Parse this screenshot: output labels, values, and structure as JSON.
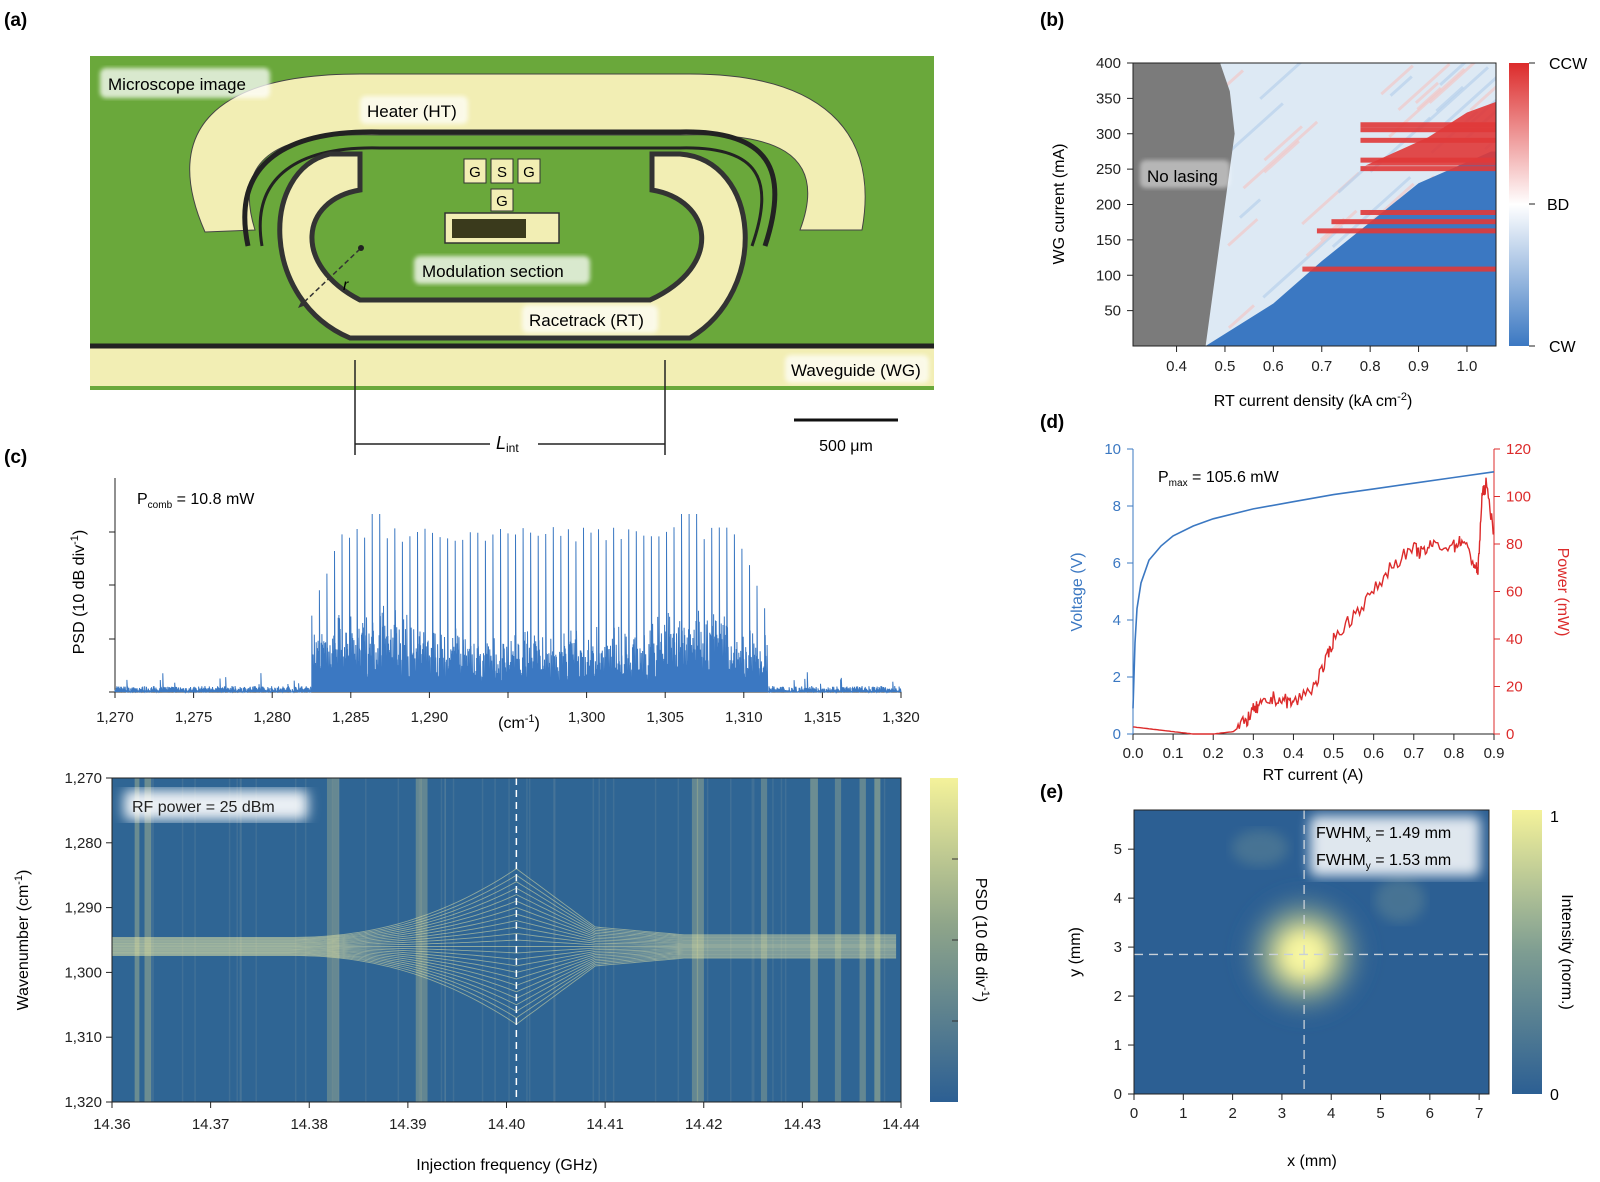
{
  "colors": {
    "green": "#6aa83b",
    "gold": "#f2eeb4",
    "blue": "#3b78c2",
    "red": "#dc2b2b",
    "map_low": "#2c5f93",
    "map_high": "#f4f29a",
    "grey": "#7b7b7b"
  },
  "panel_a": {
    "label": "(a)",
    "tags": [
      "Microscope image",
      "Heater (HT)",
      "Modulation section",
      "Racetrack (RT)",
      "Waveguide (WG)"
    ],
    "pads": [
      "G",
      "S",
      "G",
      "G"
    ],
    "radius_symbol": "r",
    "lint": "L",
    "lint_sub": "int",
    "scale_bar": "500 μm"
  },
  "chart_data": [
    {
      "id": "b",
      "type": "heatmap",
      "panel_label": "(b)",
      "xlabel": "RT current density (kA cm",
      "xlabel_sup": "-2",
      "xlabel_end": ")",
      "ylabel": "WG current (mA)",
      "xlim": [
        0.31,
        1.06
      ],
      "ylim": [
        0,
        400
      ],
      "xticks": [
        "0.4",
        "0.5",
        "0.6",
        "0.7",
        "0.8",
        "0.9",
        "1.0"
      ],
      "yticks": [
        "50",
        "100",
        "150",
        "200",
        "250",
        "300",
        "350",
        "400"
      ],
      "annotation": "No lasing",
      "colorbar": [
        "CCW",
        "BD",
        "CW"
      ],
      "no_lasing_boundary": [
        [
          0.49,
          400
        ],
        [
          0.51,
          360
        ],
        [
          0.52,
          300
        ],
        [
          0.51,
          250
        ],
        [
          0.5,
          200
        ],
        [
          0.49,
          150
        ],
        [
          0.48,
          100
        ],
        [
          0.47,
          50
        ],
        [
          0.46,
          0
        ]
      ],
      "cw_region_boundary": [
        [
          0.46,
          0
        ],
        [
          0.6,
          60
        ],
        [
          0.7,
          120
        ],
        [
          0.8,
          175
        ],
        [
          0.9,
          230
        ],
        [
          1.05,
          275
        ]
      ],
      "ccw_lines_ma": [
        108,
        162,
        175,
        188,
        250,
        262,
        290,
        305,
        312
      ]
    },
    {
      "id": "c-spectrum",
      "type": "line",
      "panel_label": "(c)",
      "xlabel": "(cm",
      "xlabel_sup": "-1",
      "xlabel_end": ")",
      "ylabel": "PSD (10 dB div",
      "ylabel_sup": "-1",
      "ylabel_end": ")",
      "xlim": [
        1270,
        1320
      ],
      "xticks": [
        "1,270",
        "1,275",
        "1,280",
        "1,285",
        "1,290",
        "1,295",
        "1,300",
        "1,305",
        "1,310",
        "1,315",
        "1,320"
      ],
      "annotation": "P",
      "annotation_sub": "comb",
      "annotation_end": " = 10.8 mW",
      "comb_range": [
        1282.5,
        1311.5
      ],
      "mode_spacing_cm": 0.48,
      "peak_modes": [
        1286.5,
        1306.5
      ]
    },
    {
      "id": "c-map",
      "type": "heatmap",
      "xlabel": "Injection frequency (GHz)",
      "ylabel": "Wavenumber (cm",
      "ylabel_sup": "-1",
      "ylabel_end": ")",
      "xlim": [
        14.36,
        14.44
      ],
      "ylim": [
        1270,
        1320
      ],
      "xticks": [
        "14.36",
        "14.37",
        "14.38",
        "14.39",
        "14.40",
        "14.41",
        "14.42",
        "14.43",
        "14.44"
      ],
      "yticks": [
        "1,270",
        "1,280",
        "1,290",
        "1,300",
        "1,310",
        "1,320"
      ],
      "annotation": "RF power = 25 dBm",
      "colorbar_label": "PSD (10 dB div",
      "colorbar_label_sup": "-1",
      "colorbar_label_end": ")",
      "marker_x": 14.401,
      "center_wavenumber": 1296,
      "max_half_width": 12
    },
    {
      "id": "d",
      "type": "line",
      "panel_label": "(d)",
      "xlabel": "RT current (A)",
      "ylabel_left": "Voltage (V)",
      "ylabel_right": "Power (mW)",
      "xlim": [
        0,
        0.9
      ],
      "ylim_left": [
        0,
        10
      ],
      "ylim_right": [
        0,
        120
      ],
      "xticks": [
        "0.0",
        "0.1",
        "0.2",
        "0.3",
        "0.4",
        "0.5",
        "0.6",
        "0.7",
        "0.8",
        "0.9"
      ],
      "yticks_left": [
        "0",
        "2",
        "4",
        "6",
        "8",
        "10"
      ],
      "yticks_right": [
        "0",
        "20",
        "40",
        "60",
        "80",
        "100",
        "120"
      ],
      "annotation": "P",
      "annotation_sub": "max",
      "annotation_end": " = 105.6 mW",
      "series": [
        {
          "name": "Voltage (V)",
          "axis": "left",
          "x": [
            0,
            0.005,
            0.01,
            0.02,
            0.04,
            0.07,
            0.1,
            0.15,
            0.2,
            0.3,
            0.4,
            0.5,
            0.6,
            0.7,
            0.8,
            0.9
          ],
          "y": [
            0.9,
            3.2,
            4.4,
            5.3,
            6.1,
            6.6,
            6.95,
            7.3,
            7.55,
            7.9,
            8.15,
            8.4,
            8.6,
            8.8,
            9.0,
            9.2
          ]
        },
        {
          "name": "Power (mW)",
          "axis": "right",
          "x": [
            0,
            0.05,
            0.1,
            0.15,
            0.2,
            0.25,
            0.28,
            0.3,
            0.32,
            0.35,
            0.38,
            0.4,
            0.45,
            0.48,
            0.5,
            0.55,
            0.6,
            0.65,
            0.7,
            0.72,
            0.75,
            0.8,
            0.82,
            0.85,
            0.86,
            0.87,
            0.88,
            0.9
          ],
          "y": [
            3,
            2,
            1,
            0,
            0,
            1,
            5,
            10,
            12,
            15,
            14,
            13,
            20,
            30,
            40,
            50,
            60,
            72,
            78,
            76,
            80,
            79,
            82,
            72,
            68,
            100,
            105,
            85
          ]
        }
      ]
    },
    {
      "id": "e",
      "type": "heatmap",
      "panel_label": "(e)",
      "xlabel": "x (mm)",
      "ylabel": "y (mm)",
      "xlim": [
        0,
        7.2
      ],
      "ylim": [
        0,
        5.8
      ],
      "xticks": [
        "0",
        "1",
        "2",
        "3",
        "4",
        "5",
        "6",
        "7"
      ],
      "yticks": [
        "0",
        "1",
        "2",
        "3",
        "4",
        "5"
      ],
      "fwhm_x": "FWHM",
      "fwhm_x_sub": "x",
      "fwhm_x_end": " = 1.49 mm",
      "fwhm_y": "FWHM",
      "fwhm_y_sub": "y",
      "fwhm_y_end": " = 1.53 mm",
      "colorbar_label": "Intensity (norm.)",
      "colorbar_ticks": [
        "1",
        "0"
      ],
      "center": [
        3.45,
        2.85
      ]
    }
  ]
}
